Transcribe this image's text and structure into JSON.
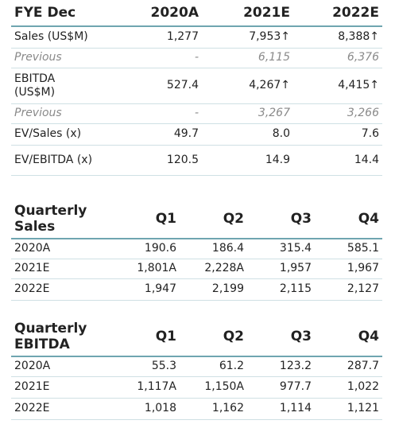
{
  "tables": [
    {
      "header": [
        "FYE Dec",
        "2020A",
        "2021E",
        "2022E"
      ],
      "rows": [
        [
          "Sales  (US$M)",
          "1,277",
          "7,953↑",
          "8,388↑"
        ],
        [
          "Previous",
          "-",
          "6,115",
          "6,376"
        ],
        [
          "EBITDA\n(US$M)",
          "527.4",
          "4,267↑",
          "4,415↑"
        ],
        [
          "Previous",
          "-",
          "3,267",
          "3,266"
        ],
        [
          "EV/Sales (x)",
          "49.7",
          "8.0",
          "7.6"
        ],
        [
          "EV/EBITDA (x)",
          "120.5",
          "14.9",
          "14.4"
        ]
      ]
    },
    {
      "header": [
        "Quarterly\nSales",
        "Q1",
        "Q2",
        "Q3",
        "Q4"
      ],
      "rows": [
        [
          "2020A",
          "190.6",
          "186.4",
          "315.4",
          "585.1"
        ],
        [
          "2021E",
          "1,801A",
          "2,228A",
          "1,957",
          "1,967"
        ],
        [
          "2022E",
          "1,947",
          "2,199",
          "2,115",
          "2,127"
        ]
      ]
    },
    {
      "header": [
        "Quarterly\nEBITDA",
        "Q1",
        "Q2",
        "Q3",
        "Q4"
      ],
      "rows": [
        [
          "2020A",
          "55.3",
          "61.2",
          "123.2",
          "287.7"
        ],
        [
          "2021E",
          "1,117A",
          "1,150A",
          "977.7",
          "1,022"
        ],
        [
          "2022E",
          "1,018",
          "1,162",
          "1,114",
          "1,121"
        ]
      ]
    }
  ]
}
